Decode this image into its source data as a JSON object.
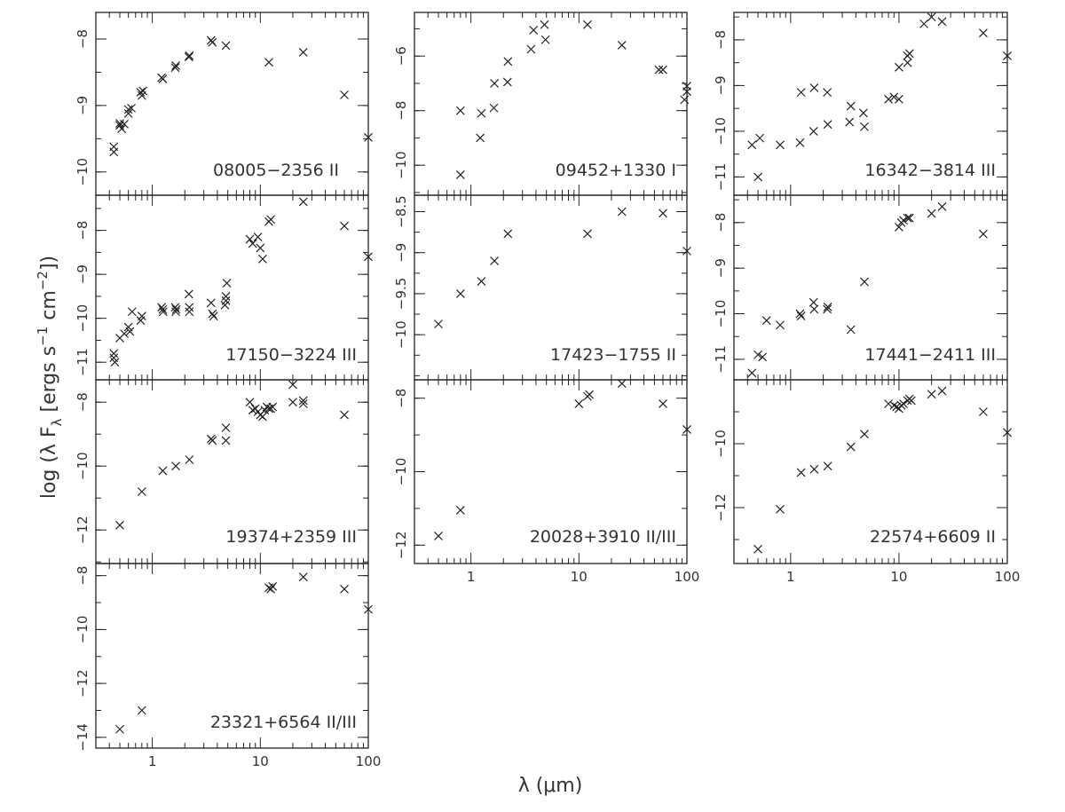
{
  "figure": {
    "ylabel": "log (λ F",
    "ylabel_sub": "λ",
    "ylabel_unit_1": " [ergs s",
    "ylabel_sup_1": "−1",
    "ylabel_unit_2": " cm",
    "ylabel_sup_2": "−2",
    "ylabel_end": "])",
    "xlabel": "λ (μm)",
    "marker": "cross",
    "marker_color": "#222222"
  },
  "chart_data": [
    {
      "type": "scatter",
      "panel": "08005-2356",
      "label": "08005−2356  II",
      "x_scale": "log",
      "xlim": [
        0.3,
        100
      ],
      "ylim": [
        -10.35,
        -7.6
      ],
      "yticks": [
        -8,
        -9,
        -10
      ],
      "x": [
        0.44,
        0.44,
        0.5,
        0.5,
        0.52,
        0.55,
        0.6,
        0.6,
        0.64,
        0.78,
        0.8,
        0.82,
        1.22,
        1.25,
        1.63,
        1.65,
        2.18,
        2.2,
        3.5,
        3.6,
        4.8,
        12,
        25,
        60,
        100
      ],
      "y": [
        -9.62,
        -9.7,
        -9.27,
        -9.3,
        -9.35,
        -9.28,
        -9.06,
        -9.12,
        -9.04,
        -8.8,
        -8.85,
        -8.78,
        -8.58,
        -8.6,
        -8.43,
        -8.4,
        -8.27,
        -8.25,
        -8.02,
        -8.05,
        -8.1,
        -8.35,
        -8.2,
        -8.84,
        -9.48
      ]
    },
    {
      "type": "scatter",
      "panel": "09452+1330",
      "label": "09452+1330  I",
      "x_scale": "log",
      "xlim": [
        0.3,
        100
      ],
      "ylim": [
        -11.1,
        -4.4
      ],
      "yticks": [
        -6,
        -8,
        -10
      ],
      "x": [
        0.8,
        0.8,
        1.22,
        1.25,
        1.63,
        1.65,
        2.18,
        2.2,
        3.6,
        3.8,
        4.8,
        4.9,
        12,
        25,
        55,
        60,
        95,
        100,
        100
      ],
      "y": [
        -10.35,
        -8.0,
        -9.0,
        -8.1,
        -7.9,
        -7.0,
        -6.95,
        -6.2,
        -5.75,
        -5.05,
        -4.85,
        -5.4,
        -4.85,
        -5.6,
        -6.5,
        -6.5,
        -7.6,
        -7.3,
        -7.1
      ]
    },
    {
      "type": "scatter",
      "panel": "16342-3814",
      "label": "16342−3814  III",
      "x_scale": "log",
      "xlim": [
        0.3,
        100
      ],
      "ylim": [
        -11.4,
        -7.4
      ],
      "yticks": [
        -8,
        -9,
        -10,
        -11
      ],
      "x": [
        0.44,
        0.5,
        0.52,
        0.8,
        1.22,
        1.25,
        1.63,
        1.65,
        2.18,
        2.2,
        3.5,
        3.6,
        4.7,
        4.8,
        8,
        9,
        10,
        10,
        12,
        12,
        12.5,
        17,
        20,
        25,
        60,
        100
      ],
      "y": [
        -10.3,
        -11.0,
        -10.15,
        -10.3,
        -10.25,
        -9.15,
        -10.0,
        -9.05,
        -9.15,
        -9.85,
        -9.8,
        -9.45,
        -9.6,
        -9.9,
        -9.3,
        -9.25,
        -9.3,
        -8.6,
        -8.5,
        -8.35,
        -8.3,
        -7.65,
        -7.5,
        -7.6,
        -7.85,
        -8.35
      ]
    },
    {
      "type": "scatter",
      "panel": "17150-3224",
      "label": "17150−3224  III",
      "x_scale": "log",
      "xlim": [
        0.3,
        100
      ],
      "ylim": [
        -11.4,
        -7.2
      ],
      "yticks": [
        -8,
        -9,
        -10,
        -11
      ],
      "x": [
        0.44,
        0.44,
        0.45,
        0.5,
        0.55,
        0.6,
        0.62,
        0.65,
        0.78,
        0.8,
        1.22,
        1.25,
        1.26,
        1.63,
        1.65,
        1.66,
        2.18,
        2.2,
        2.2,
        3.5,
        3.6,
        3.7,
        4.7,
        4.8,
        4.8,
        4.9,
        8,
        8.5,
        9.5,
        10,
        10.5,
        12,
        12.5,
        25,
        60,
        100
      ],
      "y": [
        -10.8,
        -10.9,
        -11.0,
        -10.45,
        -10.35,
        -10.2,
        -10.3,
        -9.85,
        -10.05,
        -9.95,
        -9.75,
        -9.8,
        -9.85,
        -9.75,
        -9.85,
        -9.8,
        -9.45,
        -9.75,
        -9.85,
        -9.65,
        -9.9,
        -9.95,
        -9.7,
        -9.6,
        -9.5,
        -9.2,
        -8.2,
        -8.3,
        -8.15,
        -8.4,
        -8.65,
        -7.8,
        -7.75,
        -7.35,
        -7.9,
        -8.6
      ]
    },
    {
      "type": "scatter",
      "panel": "17423-1755",
      "label": "17423−1755  II",
      "x_scale": "log",
      "xlim": [
        0.3,
        100
      ],
      "ylim": [
        -10.55,
        -8.3
      ],
      "yticks": [
        -8.5,
        -9,
        -9.5,
        -10
      ],
      "x": [
        0.5,
        0.8,
        1.25,
        1.65,
        2.2,
        12,
        25,
        60,
        100
      ],
      "y": [
        -9.87,
        -9.5,
        -9.35,
        -9.1,
        -8.77,
        -8.77,
        -8.5,
        -8.52,
        -8.98
      ]
    },
    {
      "type": "scatter",
      "panel": "17441-2411",
      "label": "17441−2411  III",
      "x_scale": "log",
      "xlim": [
        0.3,
        100
      ],
      "ylim": [
        -11.45,
        -7.4
      ],
      "yticks": [
        -8,
        -9,
        -10,
        -11
      ],
      "x": [
        0.44,
        0.5,
        0.55,
        0.6,
        0.8,
        1.22,
        1.25,
        1.63,
        1.65,
        2.18,
        2.2,
        3.6,
        4.8,
        10,
        10.5,
        11,
        12,
        12.5,
        20,
        25,
        60
      ],
      "y": [
        -11.3,
        -10.9,
        -10.95,
        -10.15,
        -10.25,
        -10.0,
        -10.05,
        -9.75,
        -9.9,
        -9.9,
        -9.85,
        -10.35,
        -9.3,
        -8.1,
        -8.0,
        -7.95,
        -7.9,
        -7.9,
        -7.8,
        -7.65,
        -8.25
      ]
    },
    {
      "type": "scatter",
      "panel": "19374+2359",
      "label": "19374+2359  III",
      "x_scale": "log",
      "xlim": [
        0.3,
        100
      ],
      "ylim": [
        -13.05,
        -7.3
      ],
      "yticks": [
        -8,
        -10,
        -12
      ],
      "x": [
        0.5,
        0.8,
        1.25,
        1.65,
        2.2,
        3.5,
        3.6,
        4.8,
        4.8,
        8,
        8.5,
        9,
        9.5,
        10,
        10.5,
        11,
        11.5,
        12,
        12.5,
        13,
        20,
        20,
        25,
        25,
        60
      ],
      "y": [
        -11.85,
        -10.8,
        -10.15,
        -10.0,
        -9.8,
        -9.15,
        -9.2,
        -8.8,
        -9.2,
        -8.0,
        -8.25,
        -8.2,
        -8.3,
        -8.4,
        -8.45,
        -8.25,
        -8.15,
        -8.2,
        -8.2,
        -8.15,
        -7.45,
        -8.0,
        -7.95,
        -8.05,
        -8.4
      ]
    },
    {
      "type": "scatter",
      "panel": "20028+3910",
      "label": "20028+3910  II/III",
      "x_scale": "log",
      "xlim": [
        0.3,
        100
      ],
      "ylim": [
        -12.5,
        -7.5
      ],
      "yticks": [
        -8,
        -10,
        -12
      ],
      "x": [
        0.5,
        0.8,
        10,
        12,
        12.5,
        25,
        60,
        100
      ],
      "y": [
        -11.75,
        -11.05,
        -8.15,
        -7.95,
        -7.9,
        -7.6,
        -8.15,
        -8.85
      ]
    },
    {
      "type": "scatter",
      "panel": "22574+6609",
      "label": "22574+6609  II",
      "x_scale": "log",
      "xlim": [
        0.3,
        100
      ],
      "ylim": [
        -13.75,
        -8.0
      ],
      "yticks": [
        -10,
        -12
      ],
      "x": [
        0.5,
        0.8,
        1.25,
        1.65,
        2.2,
        3.6,
        4.8,
        8,
        9,
        9.5,
        10,
        10.5,
        11,
        12,
        12.5,
        13,
        20,
        25,
        60,
        100
      ],
      "y": [
        -13.3,
        -12.05,
        -10.9,
        -10.8,
        -10.7,
        -10.1,
        -9.7,
        -8.75,
        -8.8,
        -8.85,
        -8.9,
        -8.8,
        -8.75,
        -8.65,
        -8.6,
        -8.65,
        -8.45,
        -8.35,
        -9.0,
        -9.65
      ]
    },
    {
      "type": "scatter",
      "panel": "23321+6564",
      "label": "23321+6564  II/III",
      "x_scale": "log",
      "xlim": [
        0.3,
        100
      ],
      "ylim": [
        -14.4,
        -7.55
      ],
      "yticks": [
        -8,
        -10,
        -12,
        -14
      ],
      "x": [
        0.5,
        0.8,
        12,
        12.5,
        13,
        25,
        60,
        100
      ],
      "y": [
        -13.7,
        -13.0,
        -8.45,
        -8.5,
        -8.4,
        -8.05,
        -8.5,
        -9.25
      ]
    }
  ],
  "x_tick_labels": [
    "1",
    "10",
    "100"
  ]
}
